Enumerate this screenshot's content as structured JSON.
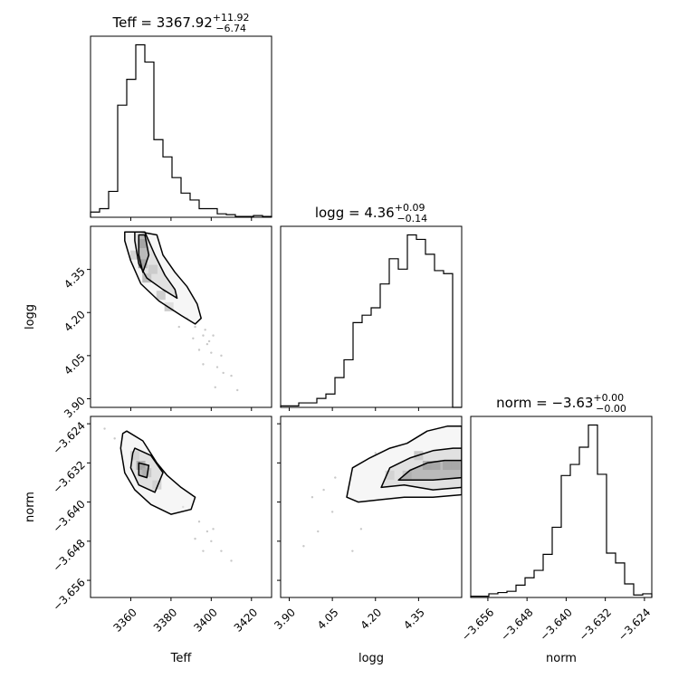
{
  "chart_data": {
    "type": "corner",
    "parameters": [
      {
        "name": "Teff",
        "xlabel": "Teff",
        "range": [
          3340,
          3430
        ],
        "ticks": [
          3360,
          3380,
          3400,
          3420
        ],
        "tick_labels": [
          "3360",
          "3380",
          "3400",
          "3420"
        ],
        "title": {
          "prefix": "Teff = ",
          "value": "3367.92",
          "plus": "+11.92",
          "minus": "−6.74"
        }
      },
      {
        "name": "logg",
        "xlabel": "logg",
        "range": [
          3.87,
          4.5
        ],
        "ticks": [
          3.9,
          4.05,
          4.2,
          4.35
        ],
        "tick_labels": [
          "3.90",
          "4.05",
          "4.20",
          "4.35"
        ],
        "title": {
          "prefix": "logg = ",
          "value": "4.36",
          "plus": "+0.09",
          "minus": "−0.14"
        }
      },
      {
        "name": "norm",
        "xlabel": "norm",
        "range": [
          -3.6595,
          -3.6225
        ],
        "ticks": [
          -3.656,
          -3.648,
          -3.64,
          -3.632,
          -3.624
        ],
        "tick_labels": [
          "−3.656",
          "−3.648",
          "−3.640",
          "−3.632",
          "−3.624"
        ],
        "title": {
          "prefix": "norm = ",
          "value": "−3.63",
          "plus": "+0.00",
          "minus": "−0.00"
        }
      }
    ],
    "row_labels": [
      "logg",
      "norm"
    ],
    "histograms": [
      {
        "param": "Teff",
        "edges_start": 3340,
        "bin_width": 4.5,
        "counts": [
          0.3,
          0.5,
          1.5,
          6.5,
          8.0,
          10.0,
          9.0,
          4.5,
          3.5,
          2.3,
          1.4,
          1.0,
          0.5,
          0.5,
          0.2,
          0.15,
          0.05,
          0.05,
          0.1,
          0.05
        ]
      },
      {
        "param": "logg",
        "edges_start": 3.87,
        "bin_width": 0.0315,
        "counts": [
          0.1,
          0.1,
          0.3,
          0.3,
          0.6,
          0.9,
          2.0,
          3.2,
          5.7,
          6.2,
          6.7,
          8.3,
          10.0,
          9.3,
          11.6,
          11.3,
          10.3,
          9.2,
          9.0,
          0.0
        ]
      },
      {
        "param": "norm",
        "edges_start": -3.6595,
        "bin_width": 0.00185,
        "counts": [
          0.1,
          0.1,
          0.3,
          0.4,
          0.5,
          1.0,
          1.6,
          2.2,
          3.5,
          5.7,
          9.9,
          10.8,
          12.2,
          14.0,
          10.0,
          3.6,
          2.8,
          1.1,
          0.2,
          0.3
        ]
      }
    ],
    "joint_panels": [
      {
        "x": "Teff",
        "y": "logg",
        "contours": [
          [
            [
              3357,
              4.48
            ],
            [
              3365,
              4.48
            ],
            [
              3373,
              4.47
            ],
            [
              3376,
              4.4
            ],
            [
              3382,
              4.34
            ],
            [
              3388,
              4.29
            ],
            [
              3393,
              4.23
            ],
            [
              3395,
              4.18
            ],
            [
              3392,
              4.16
            ],
            [
              3385,
              4.19
            ],
            [
              3374,
              4.24
            ],
            [
              3365,
              4.3
            ],
            [
              3360,
              4.38
            ],
            [
              3357,
              4.45
            ]
          ],
          [
            [
              3362,
              4.48
            ],
            [
              3367,
              4.48
            ],
            [
              3372,
              4.4
            ],
            [
              3377,
              4.33
            ],
            [
              3382,
              4.28
            ],
            [
              3383,
              4.25
            ],
            [
              3376,
              4.28
            ],
            [
              3368,
              4.32
            ],
            [
              3364,
              4.37
            ],
            [
              3362,
              4.45
            ]
          ],
          [
            [
              3364,
              4.47
            ],
            [
              3367,
              4.47
            ],
            [
              3369,
              4.4
            ],
            [
              3366,
              4.34
            ],
            [
              3364,
              4.4
            ]
          ]
        ],
        "points": [
          [
            3388,
            4.18
          ],
          [
            3392,
            4.15
          ],
          [
            3396,
            4.12
          ],
          [
            3398,
            4.09
          ],
          [
            3400,
            4.06
          ],
          [
            3396,
            4.02
          ],
          [
            3403,
            4.01
          ],
          [
            3405,
            4.05
          ],
          [
            3410,
            3.98
          ],
          [
            3402,
            3.94
          ],
          [
            3413,
            3.93
          ],
          [
            3399,
            4.1
          ],
          [
            3394,
            4.07
          ],
          [
            3397,
            4.14
          ],
          [
            3401,
            4.12
          ],
          [
            3406,
            3.99
          ],
          [
            3391,
            4.11
          ],
          [
            3384,
            4.15
          ]
        ],
        "heat": [
          [
            3366,
            4.44,
            0.9
          ],
          [
            3366,
            4.37,
            0.8
          ],
          [
            3368,
            4.32,
            0.5
          ],
          [
            3375,
            4.26,
            0.35
          ],
          [
            3362,
            4.4,
            0.3
          ],
          [
            3371,
            4.35,
            0.4
          ],
          [
            3379,
            4.22,
            0.2
          ]
        ]
      },
      {
        "x": "Teff",
        "y": "norm",
        "contours": [
          [
            [
              3358,
              -3.6255
            ],
            [
              3366,
              -3.6275
            ],
            [
              3373,
              -3.632
            ],
            [
              3378,
              -3.6345
            ],
            [
              3385,
              -3.637
            ],
            [
              3392,
              -3.639
            ],
            [
              3390,
              -3.6415
            ],
            [
              3380,
              -3.6425
            ],
            [
              3370,
              -3.6405
            ],
            [
              3362,
              -3.6375
            ],
            [
              3357,
              -3.634
            ],
            [
              3355,
              -3.629
            ],
            [
              3356,
              -3.626
            ]
          ],
          [
            [
              3362,
              -3.629
            ],
            [
              3370,
              -3.6305
            ],
            [
              3376,
              -3.634
            ],
            [
              3372,
              -3.638
            ],
            [
              3364,
              -3.6365
            ],
            [
              3360,
              -3.633
            ],
            [
              3361,
              -3.63
            ]
          ],
          [
            [
              3364,
              -3.632
            ],
            [
              3369,
              -3.6325
            ],
            [
              3368,
              -3.635
            ],
            [
              3364,
              -3.6345
            ]
          ]
        ],
        "points": [
          [
            3347,
            -3.625
          ],
          [
            3352,
            -3.627
          ],
          [
            3386,
            -3.641
          ],
          [
            3394,
            -3.644
          ],
          [
            3398,
            -3.646
          ],
          [
            3400,
            -3.648
          ],
          [
            3405,
            -3.65
          ],
          [
            3410,
            -3.652
          ],
          [
            3396,
            -3.65
          ],
          [
            3401,
            -3.6455
          ],
          [
            3392,
            -3.6475
          ]
        ],
        "heat": [
          [
            3365,
            -3.6325,
            0.9
          ],
          [
            3368,
            -3.634,
            0.5
          ],
          [
            3373,
            -3.6365,
            0.3
          ],
          [
            3362,
            -3.6305,
            0.3
          ]
        ]
      },
      {
        "x": "logg",
        "y": "norm",
        "contours": [
          [
            [
              4.1,
              -3.639
            ],
            [
              4.12,
              -3.633
            ],
            [
              4.18,
              -3.631
            ],
            [
              4.25,
              -3.629
            ],
            [
              4.31,
              -3.628
            ],
            [
              4.38,
              -3.6255
            ],
            [
              4.45,
              -3.6245
            ],
            [
              4.5,
              -3.6245
            ],
            [
              4.5,
              -3.6385
            ],
            [
              4.4,
              -3.639
            ],
            [
              4.3,
              -3.639
            ],
            [
              4.22,
              -3.6395
            ],
            [
              4.14,
              -3.64
            ]
          ],
          [
            [
              4.22,
              -3.637
            ],
            [
              4.25,
              -3.633
            ],
            [
              4.32,
              -3.631
            ],
            [
              4.4,
              -3.6295
            ],
            [
              4.47,
              -3.629
            ],
            [
              4.5,
              -3.629
            ],
            [
              4.5,
              -3.637
            ],
            [
              4.4,
              -3.6375
            ],
            [
              4.3,
              -3.6365
            ]
          ],
          [
            [
              4.28,
              -3.6355
            ],
            [
              4.32,
              -3.6335
            ],
            [
              4.38,
              -3.632
            ],
            [
              4.44,
              -3.6315
            ],
            [
              4.5,
              -3.6315
            ],
            [
              4.5,
              -3.635
            ],
            [
              4.4,
              -3.6355
            ]
          ]
        ],
        "points": [
          [
            4.05,
            -3.642
          ],
          [
            3.95,
            -3.649
          ],
          [
            4.0,
            -3.646
          ],
          [
            4.15,
            -3.6455
          ],
          [
            3.98,
            -3.639
          ],
          [
            4.02,
            -3.6375
          ],
          [
            4.2,
            -3.63
          ],
          [
            4.06,
            -3.635
          ],
          [
            4.12,
            -3.65
          ]
        ],
        "heat": [
          [
            4.38,
            -3.6325,
            0.9
          ],
          [
            4.41,
            -3.6325,
            0.85
          ],
          [
            4.45,
            -3.6325,
            0.85
          ],
          [
            4.48,
            -3.6325,
            0.85
          ],
          [
            4.31,
            -3.6345,
            0.5
          ],
          [
            4.25,
            -3.6345,
            0.3
          ],
          [
            4.35,
            -3.6305,
            0.4
          ]
        ]
      }
    ],
    "grid": false,
    "color": "#000000"
  }
}
